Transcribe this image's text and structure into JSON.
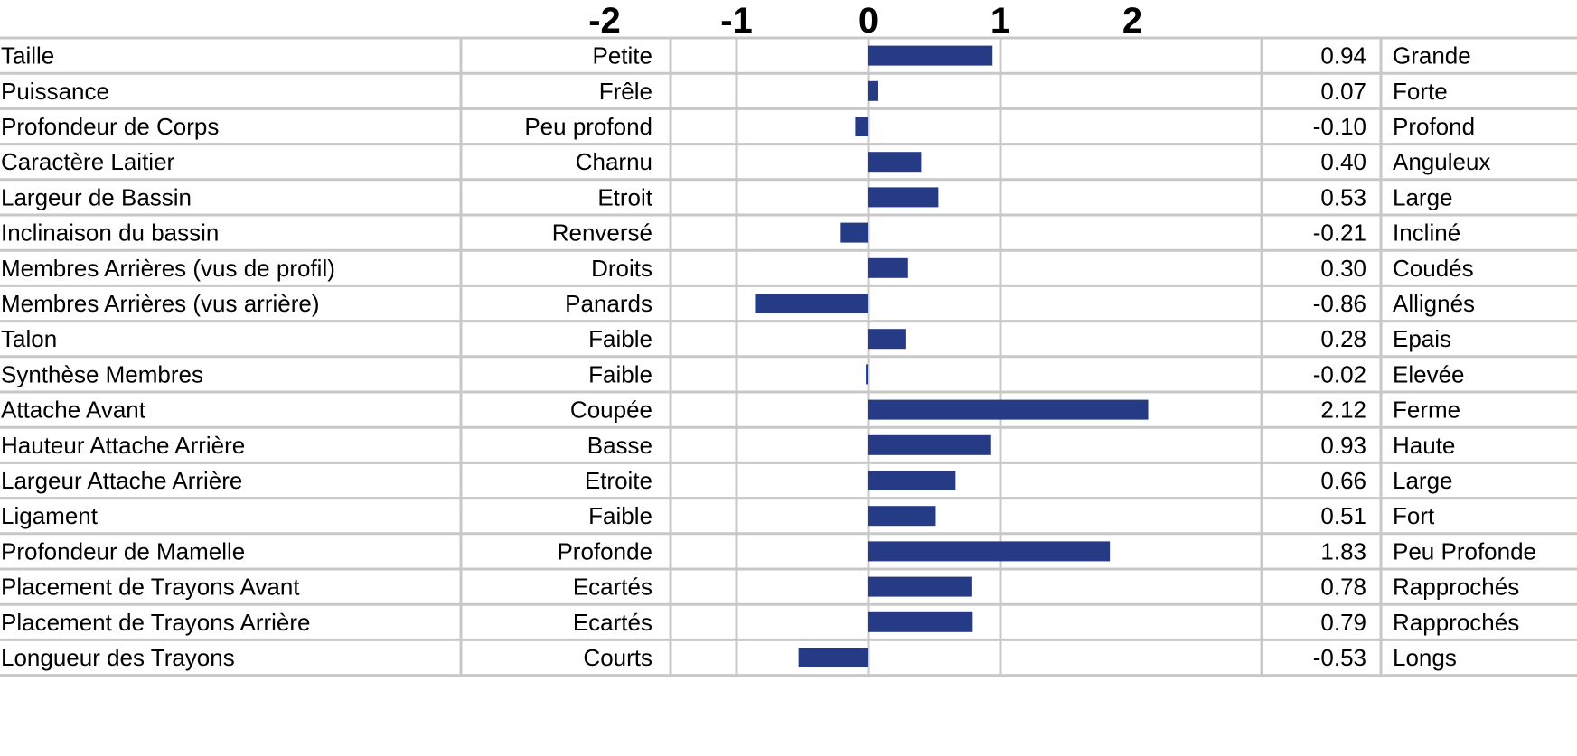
{
  "chart_data": {
    "type": "bar",
    "orientation": "horizontal",
    "xlim": [
      -2,
      2
    ],
    "ticks": [
      "-2",
      "-1",
      "0",
      "1",
      "2"
    ],
    "bar_color": "#263b86",
    "grid_color": "#c8c8c8",
    "rows": [
      {
        "trait": "Taille",
        "low": "Petite",
        "value": 0.94,
        "label": "0.94",
        "high": "Grande"
      },
      {
        "trait": "Puissance",
        "low": "Frêle",
        "value": 0.07,
        "label": "0.07",
        "high": "Forte"
      },
      {
        "trait": "Profondeur de Corps",
        "low": "Peu profond",
        "value": -0.1,
        "label": "-0.10",
        "high": "Profond"
      },
      {
        "trait": "Caractère Laitier",
        "low": "Charnu",
        "value": 0.4,
        "label": "0.40",
        "high": "Anguleux"
      },
      {
        "trait": "Largeur de Bassin",
        "low": "Etroit",
        "value": 0.53,
        "label": "0.53",
        "high": "Large"
      },
      {
        "trait": "Inclinaison du bassin",
        "low": "Renversé",
        "value": -0.21,
        "label": "-0.21",
        "high": "Incliné"
      },
      {
        "trait": "Membres Arrières (vus de profil)",
        "low": "Droits",
        "value": 0.3,
        "label": "0.30",
        "high": "Coudés"
      },
      {
        "trait": "Membres Arrières (vus arrière)",
        "low": "Panards",
        "value": -0.86,
        "label": "-0.86",
        "high": "Allignés"
      },
      {
        "trait": "Talon",
        "low": "Faible",
        "value": 0.28,
        "label": "0.28",
        "high": "Epais"
      },
      {
        "trait": "Synthèse Membres",
        "low": "Faible",
        "value": -0.02,
        "label": "-0.02",
        "high": "Elevée"
      },
      {
        "trait": "Attache Avant",
        "low": "Coupée",
        "value": 2.12,
        "label": "2.12",
        "high": "Ferme"
      },
      {
        "trait": "Hauteur Attache Arrière",
        "low": "Basse",
        "value": 0.93,
        "label": "0.93",
        "high": "Haute"
      },
      {
        "trait": "Largeur Attache Arrière",
        "low": "Etroite",
        "value": 0.66,
        "label": "0.66",
        "high": "Large"
      },
      {
        "trait": "Ligament",
        "low": "Faible",
        "value": 0.51,
        "label": "0.51",
        "high": "Fort"
      },
      {
        "trait": "Profondeur de Mamelle",
        "low": "Profonde",
        "value": 1.83,
        "label": "1.83",
        "high": "Peu Profonde"
      },
      {
        "trait": "Placement de Trayons Avant",
        "low": "Ecartés",
        "value": 0.78,
        "label": "0.78",
        "high": "Rapprochés"
      },
      {
        "trait": "Placement de Trayons Arrière",
        "low": "Ecartés",
        "value": 0.79,
        "label": "0.79",
        "high": "Rapprochés"
      },
      {
        "trait": "Longueur des Trayons",
        "low": "Courts",
        "value": -0.53,
        "label": "-0.53",
        "high": "Longs"
      }
    ]
  }
}
